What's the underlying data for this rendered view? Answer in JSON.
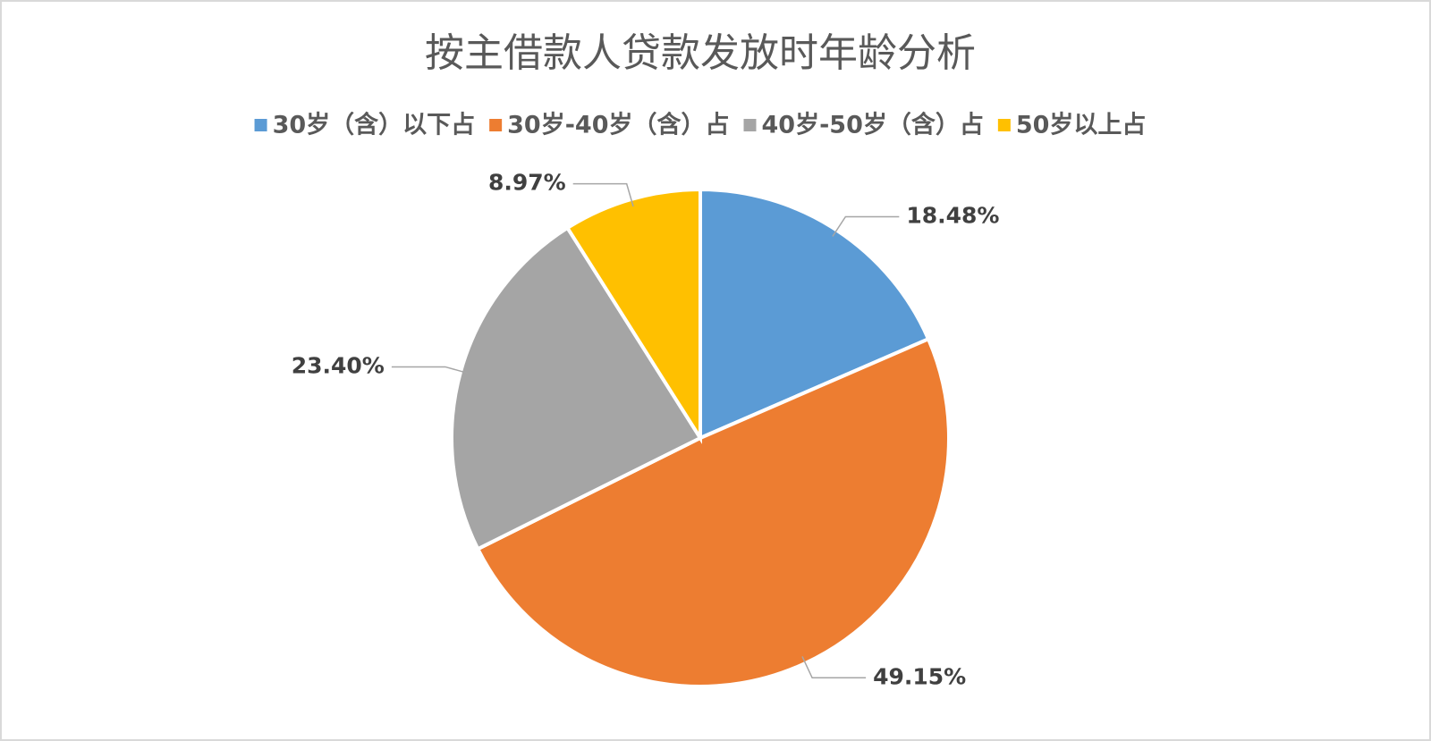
{
  "chart_data": {
    "type": "pie",
    "title": "按主借款人贷款发放时年龄分析",
    "categories": [
      "30岁（含）以下占",
      "30岁-40岁（含）占",
      "40岁-50岁（含）占",
      "50岁以上占"
    ],
    "values": [
      18.48,
      49.15,
      23.4,
      8.97
    ],
    "value_labels": [
      "18.48%",
      "49.15%",
      "23.40%",
      "8.97%"
    ],
    "colors": [
      "#5b9bd5",
      "#ed7d31",
      "#a5a5a5",
      "#ffc000"
    ],
    "legend": "top"
  }
}
